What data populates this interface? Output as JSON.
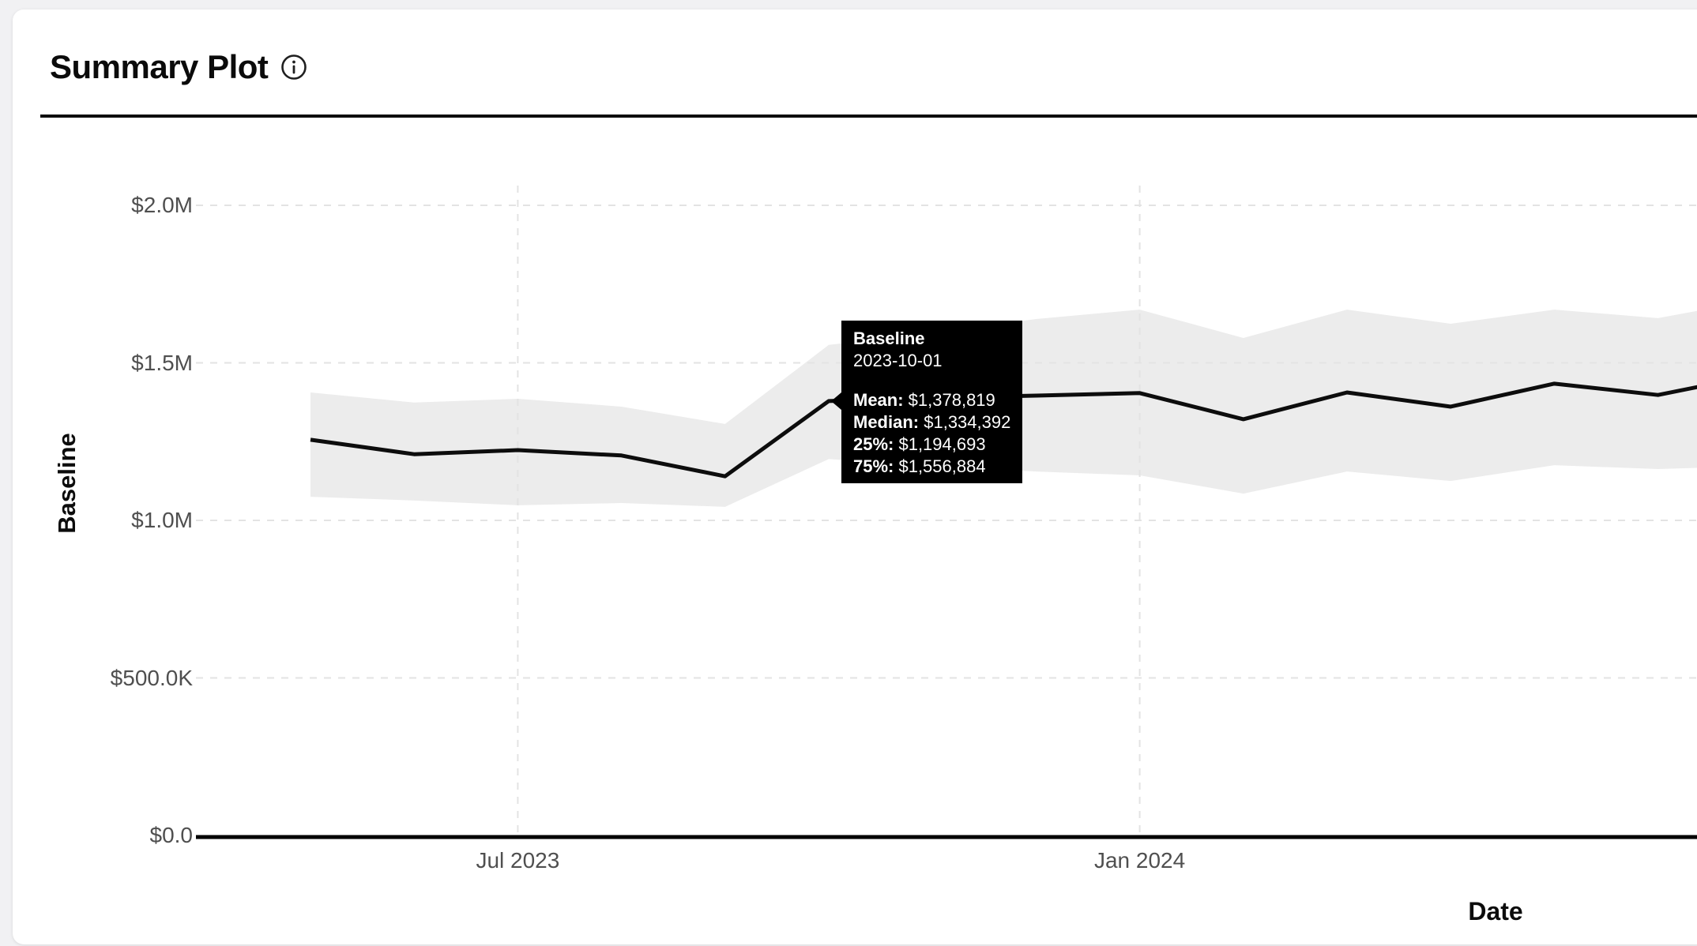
{
  "header": {
    "title": "Summary Plot",
    "info_icon": "info-circle-icon"
  },
  "colors": {
    "page_background": "#f1f1f3",
    "card_background": "#ffffff",
    "separator": "#0d0d0d",
    "gridline": "#e3e3e3",
    "band_fill": "#ececec",
    "mean_line": "#0d0d0d",
    "axis_line": "#000000",
    "tick_text": "#4f4f4f",
    "tooltip_background": "#000000",
    "tooltip_text": "#ffffff"
  },
  "chart_data": {
    "type": "line",
    "title": "Summary Plot",
    "xlabel": "Date",
    "ylabel": "Baseline",
    "grid": "dashed",
    "legend": "none",
    "ylim": [
      0,
      2062000
    ],
    "y_ticks": [
      {
        "label": "$0.0",
        "value": 0
      },
      {
        "label": "$500.0K",
        "value": 500000
      },
      {
        "label": "$1.0M",
        "value": 1000000
      },
      {
        "label": "$1.5M",
        "value": 1500000
      },
      {
        "label": "$2.0M",
        "value": 2000000
      }
    ],
    "x_ticks": [
      {
        "label": "Jul 2023",
        "date": "2023-07"
      },
      {
        "label": "Jan 2024",
        "date": "2024-01"
      }
    ],
    "series_name": "Baseline",
    "band_meaning": "25% to 75% percentile band around mean line",
    "points": [
      {
        "date": "2023-05-01",
        "mean": 1256000,
        "p25": 1075000,
        "p75": 1406000
      },
      {
        "date": "2023-06-01",
        "mean": 1210000,
        "p25": 1063000,
        "p75": 1374000
      },
      {
        "date": "2023-07-01",
        "mean": 1223000,
        "p25": 1048000,
        "p75": 1386000
      },
      {
        "date": "2023-08-01",
        "mean": 1206000,
        "p25": 1055000,
        "p75": 1361000
      },
      {
        "date": "2023-09-01",
        "mean": 1140000,
        "p25": 1043000,
        "p75": 1306000
      },
      {
        "date": "2023-10-01",
        "mean": 1378819,
        "p25": 1194693,
        "p75": 1556884
      },
      {
        "date": "2023-11-01",
        "mean": 1389000,
        "p25": 1173000,
        "p75": 1594000
      },
      {
        "date": "2023-12-01",
        "mean": 1396000,
        "p25": 1155000,
        "p75": 1639000
      },
      {
        "date": "2024-01-01",
        "mean": 1404000,
        "p25": 1143000,
        "p75": 1669000
      },
      {
        "date": "2024-02-01",
        "mean": 1321000,
        "p25": 1085000,
        "p75": 1579000
      },
      {
        "date": "2024-03-01",
        "mean": 1406000,
        "p25": 1155000,
        "p75": 1669000
      },
      {
        "date": "2024-04-01",
        "mean": 1361000,
        "p25": 1125000,
        "p75": 1624000
      },
      {
        "date": "2024-05-01",
        "mean": 1434000,
        "p25": 1175000,
        "p75": 1669000
      },
      {
        "date": "2024-06-01",
        "mean": 1398000,
        "p25": 1163000,
        "p75": 1642000
      }
    ],
    "right_edge_clip_values": {
      "mean": 1431000,
      "p25": 1168000,
      "p75": 1672000
    }
  },
  "tooltip": {
    "series_name": "Baseline",
    "date": "2023-10-01",
    "rows": [
      {
        "label": "Mean:",
        "value": " $1,378,819"
      },
      {
        "label": "Median:",
        "value": " $1,334,392"
      },
      {
        "label": "25%:",
        "value": " $1,194,693"
      },
      {
        "label": "75%:",
        "value": " $1,556,884"
      }
    ]
  }
}
